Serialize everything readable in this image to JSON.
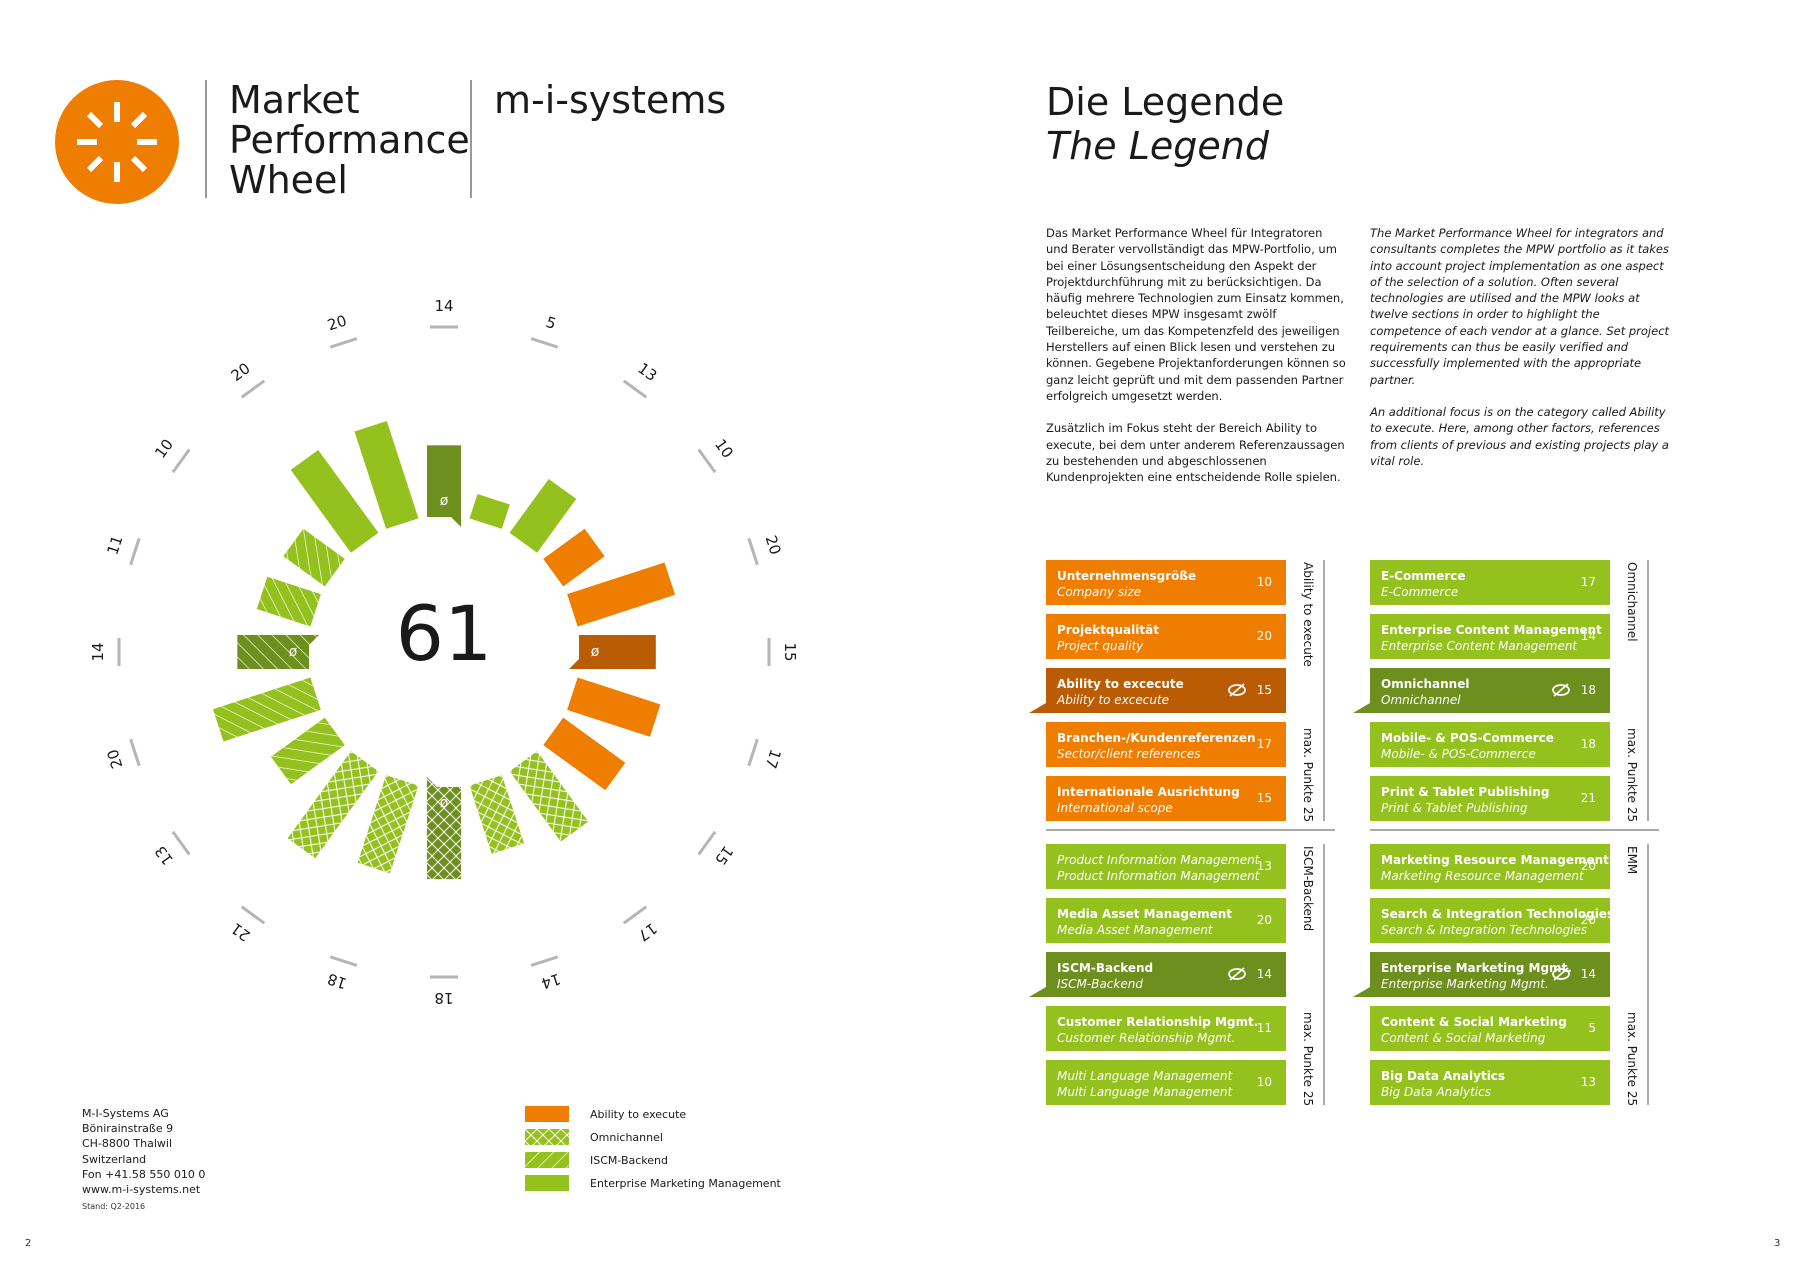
{
  "brand": {
    "title_lines": [
      "Market",
      "Performance",
      "Wheel"
    ],
    "company": "m-i-systems"
  },
  "legend_heading": {
    "de": "Die Legende",
    "en": "The Legend"
  },
  "text": {
    "de_p1": "Das Market Performance Wheel für Integratoren und Berater vervollständigt das MPW-Portfolio, um bei einer Lösungsentscheidung den Aspekt der Projektdurchführung mit zu berücksichtigen. Da häufig mehrere Technologien zum Einsatz kommen, beleuchtet dieses MPW insgesamt zwölf Teilbereiche, um das Kompetenzfeld des jeweiligen Herstellers auf einen Blick lesen und verstehen zu können. Gegebene Projektanforderungen können so ganz leicht geprüft und mit dem passenden Partner erfolgreich umgesetzt werden.",
    "de_p2": "Zusätzlich im Fokus steht der Bereich Ability to execute, bei dem unter anderem Referenzaussagen zu bestehenden und abgeschlossenen Kundenprojekten eine entscheidende Rolle spielen.",
    "en_p1": "The Market Performance Wheel for integrators and consultants completes the MPW portfolio as it takes into account project implementation as one aspect of the selection of a solution. Often several technologies are utilised and the MPW looks at twelve sections in order to highlight the competence of each vendor at a glance. Set project requirements can thus be easily verified and successfully implemented with the appropriate partner.",
    "en_p2": "An additional focus is on the category called Ability to execute. Here, among other factors, references from clients of previous and existing projects play a vital role."
  },
  "colors": {
    "orange": "#ef7d00",
    "orange_dark": "#b95c03",
    "green": "#95c11f",
    "green_dark": "#6c8f1e",
    "logo": "#ef7d00"
  },
  "chart_data": {
    "type": "radial-bar",
    "center_value": "61",
    "max": 25,
    "tick_labels": [
      "14",
      "5",
      "13",
      "10",
      "20",
      "15",
      "17",
      "15",
      "17",
      "14",
      "18",
      "18",
      "21",
      "13",
      "20",
      "14",
      "11",
      "10",
      "20",
      "20"
    ],
    "series": [
      {
        "name": "Ability to execute",
        "values": [
          10,
          20,
          17,
          15
        ],
        "average": 15
      },
      {
        "name": "Omnichannel",
        "values": [
          17,
          14,
          18,
          21
        ],
        "average": 18
      },
      {
        "name": "ISCM-Backend",
        "values": [
          13,
          20,
          11,
          10
        ],
        "average": 14
      },
      {
        "name": "Enterprise Marketing Management",
        "values": [
          20,
          20,
          5,
          13
        ],
        "average": 14
      }
    ]
  },
  "key": [
    {
      "label": "Ability to execute",
      "pattern": "solid-orange"
    },
    {
      "label": "Omnichannel",
      "pattern": "crosshatch-green"
    },
    {
      "label": "ISCM-Backend",
      "pattern": "hatch-green"
    },
    {
      "label": "Enterprise Marketing Management",
      "pattern": "solid-green"
    }
  ],
  "address": [
    "M-I-Systems AG",
    "Bönirainstraße 9",
    "CH-8800 Thalwil",
    "Switzerland",
    "Fon +41.58 550 010 0",
    "www.m-i-systems.net"
  ],
  "stand": "Stand: Q2-2016",
  "page_left": "2",
  "page_right": "3",
  "table": {
    "groups": [
      {
        "label": "Ability to execute",
        "max_label": "max. Punkte 25",
        "style": "orange",
        "items": [
          {
            "de": "Unternehmensgröße",
            "en": "Company size",
            "value": "10"
          },
          {
            "de": "Projektqualität",
            "en": "Project quality",
            "value": "20"
          },
          {
            "de": "Ability to excecute",
            "en": "Ability to excecute",
            "value": "15",
            "avg": true
          },
          {
            "de": "Branchen-/Kundenreferenzen",
            "en": "Sector/client references",
            "value": "17"
          },
          {
            "de": "Internationale Ausrichtung",
            "en": "International scope",
            "value": "15"
          }
        ]
      },
      {
        "label": "Omnichannel",
        "max_label": "max. Punkte 25",
        "style": "green",
        "items": [
          {
            "de": "E-Commerce",
            "en": "E-Commerce",
            "value": "17"
          },
          {
            "de": "Enterprise Content Management",
            "en": "Enterprise Content Management",
            "value": "14"
          },
          {
            "de": "Omnichannel",
            "en": "Omnichannel",
            "value": "18",
            "avg": true
          },
          {
            "de": "Mobile- & POS-Commerce",
            "en": "Mobile- & POS-Commerce",
            "value": "18"
          },
          {
            "de": "Print & Tablet Publishing",
            "en": "Print & Tablet Publishing",
            "value": "21"
          }
        ]
      },
      {
        "label": "ISCM-Backend",
        "max_label": "max. Punkte 25",
        "style": "green",
        "items": [
          {
            "de": "Product Information Management",
            "en": "Product Information Management",
            "value": "13",
            "light": true
          },
          {
            "de": "Media Asset Management",
            "en": "Media Asset Management",
            "value": "20"
          },
          {
            "de": "ISCM-Backend",
            "en": "ISCM-Backend",
            "value": "14",
            "avg": true
          },
          {
            "de": "Customer Relationship Mgmt.",
            "en": "Customer Relationship Mgmt.",
            "value": "11"
          },
          {
            "de": "Multi Language Management",
            "en": "Multi Language Management",
            "value": "10",
            "light": true
          }
        ]
      },
      {
        "label": "EMM",
        "max_label": "max. Punkte 25",
        "style": "green",
        "items": [
          {
            "de": "Marketing Resource Management",
            "en": "Marketing Resource Management",
            "value": "20"
          },
          {
            "de": "Search & Integration Technologies",
            "en": "Search & Integration Technologies",
            "value": "20"
          },
          {
            "de": "Enterprise Marketing Mgmt.",
            "en": "Enterprise Marketing Mgmt.",
            "value": "14",
            "avg": true
          },
          {
            "de": "Content & Social Marketing",
            "en": "Content & Social Marketing",
            "value": "5"
          },
          {
            "de": "Big Data Analytics",
            "en": "Big Data Analytics",
            "value": "13"
          }
        ]
      }
    ]
  }
}
